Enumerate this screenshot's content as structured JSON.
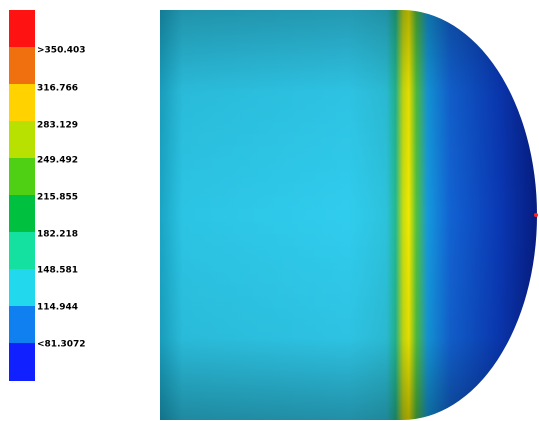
{
  "legend": {
    "labels": [
      ">350.403",
      "316.766",
      "283.129",
      "249.492",
      "215.855",
      "182.218",
      "148.581",
      "114.944",
      "<81.3072"
    ]
  }
}
